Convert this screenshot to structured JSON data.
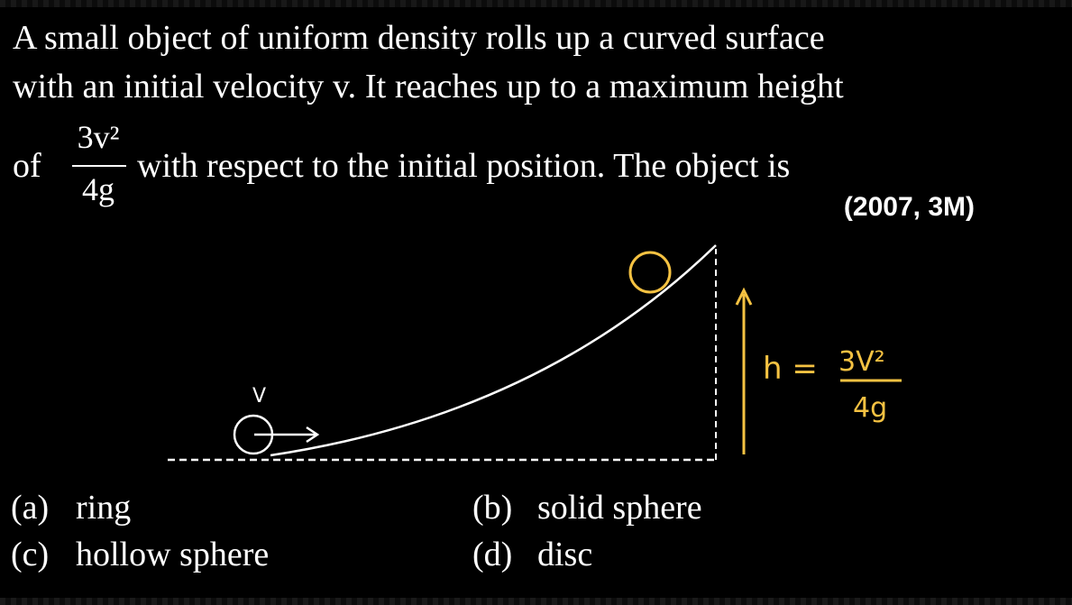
{
  "question": {
    "line1": "A small object of uniform density rolls up a curved surface",
    "line2": "with an initial velocity v. It reaches up to a maximum height",
    "line3_prefix": "of",
    "fraction_numerator": "3v²",
    "fraction_denominator": "4g",
    "line3_suffix": "with respect to the initial position. The object is",
    "year_marks": "(2007, 3M)"
  },
  "diagram": {
    "velocity_label": "V",
    "height_label": "h =",
    "height_numerator": "3V²",
    "height_denominator": "4g",
    "annotation_color": "#f5c242"
  },
  "options": [
    {
      "tag": "(a)",
      "text": "ring"
    },
    {
      "tag": "(b)",
      "text": "solid sphere"
    },
    {
      "tag": "(c)",
      "text": "hollow sphere"
    },
    {
      "tag": "(d)",
      "text": "disc"
    }
  ]
}
